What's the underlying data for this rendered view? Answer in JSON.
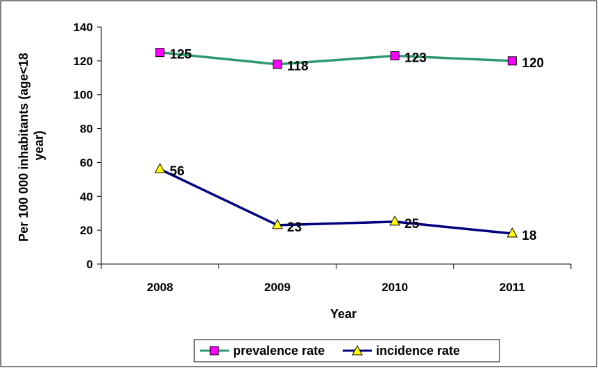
{
  "chart_data": {
    "type": "line",
    "title": "",
    "xlabel": "Year",
    "ylabel": "Per 100 000 inhabitants (age<18 year)",
    "ylabel_lines": [
      "Per 100 000 inhabitants (age<18",
      "year)"
    ],
    "categories": [
      "2008",
      "2009",
      "2010",
      "2011"
    ],
    "ylim": [
      0,
      140
    ],
    "yticks": [
      0,
      20,
      40,
      60,
      80,
      100,
      120,
      140
    ],
    "grid": false,
    "legend_position": "bottom",
    "series": [
      {
        "name": "prevalence rate",
        "values": [
          125,
          118,
          123,
          120
        ],
        "line_color": "#2e9a6e",
        "marker": "square",
        "marker_color": "#ff00ff"
      },
      {
        "name": "incidence rate",
        "values": [
          56,
          23,
          25,
          18
        ],
        "line_color": "#000080",
        "marker": "triangle",
        "marker_color": "#ffff00"
      }
    ]
  }
}
